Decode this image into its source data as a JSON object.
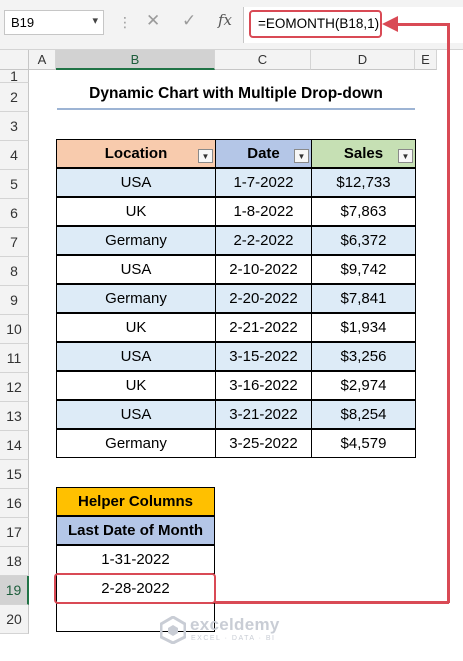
{
  "formula_bar": {
    "name_box": "B19",
    "cancel_icon": "✕",
    "enter_icon": "✓",
    "fx_label": "fx",
    "formula": "=EOMONTH(B18,1)"
  },
  "columns": [
    "A",
    "B",
    "C",
    "D",
    "E"
  ],
  "rows": [
    "1",
    "2",
    "3",
    "4",
    "5",
    "6",
    "7",
    "8",
    "9",
    "10",
    "11",
    "12",
    "13",
    "14",
    "15",
    "16",
    "17",
    "18",
    "19",
    "20"
  ],
  "selected_cell": "B19",
  "title": "Dynamic Chart with Multiple Drop-down",
  "table": {
    "headers": [
      "Location",
      "Date",
      "Sales"
    ],
    "header_colors": [
      "#f8cbad",
      "#b4c6e7",
      "#c6e0b4"
    ],
    "stripe_color": "#ddebf7",
    "rows": [
      [
        "USA",
        "1-7-2022",
        "$12,733"
      ],
      [
        "UK",
        "1-8-2022",
        "$7,863"
      ],
      [
        "Germany",
        "2-2-2022",
        "$6,372"
      ],
      [
        "USA",
        "2-10-2022",
        "$9,742"
      ],
      [
        "Germany",
        "2-20-2022",
        "$7,841"
      ],
      [
        "UK",
        "2-21-2022",
        "$1,934"
      ],
      [
        "USA",
        "3-15-2022",
        "$3,256"
      ],
      [
        "UK",
        "3-16-2022",
        "$2,974"
      ],
      [
        "USA",
        "3-21-2022",
        "$8,254"
      ],
      [
        "Germany",
        "3-25-2022",
        "$4,579"
      ]
    ]
  },
  "helper": {
    "title": "Helper Columns",
    "subtitle": "Last Date of Month",
    "values": [
      "1-31-2022",
      "2-28-2022",
      ""
    ]
  },
  "watermark": {
    "name": "exceldemy",
    "tagline": "EXCEL · DATA · BI"
  },
  "colors": {
    "highlight": "#d94a55",
    "excel_green": "#217346",
    "helper_header": "#ffc000",
    "helper_sub": "#b4c6e7"
  }
}
